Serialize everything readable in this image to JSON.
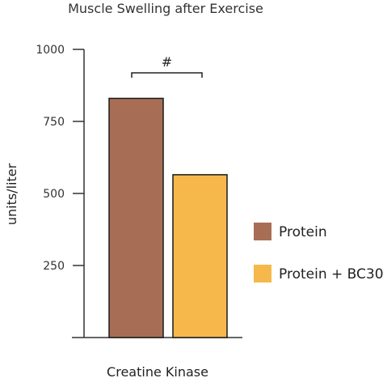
{
  "chart_data": {
    "type": "bar",
    "title": "Muscle Swelling after Exercise",
    "xlabel": "Creatine Kinase",
    "ylabel": "units/liter",
    "ylim": [
      0,
      1000
    ],
    "yticks": [
      250,
      500,
      750,
      1000
    ],
    "categories": [
      "Creatine Kinase"
    ],
    "series": [
      {
        "name": "Protein",
        "values": [
          830
        ],
        "color": "#a86e55"
      },
      {
        "name": "Protein + BC30",
        "values": [
          565
        ],
        "color": "#f7b84b"
      }
    ],
    "annotation": {
      "text": "#",
      "between": [
        "Protein",
        "Protein + BC30"
      ]
    },
    "grid": false,
    "legend": "right"
  }
}
